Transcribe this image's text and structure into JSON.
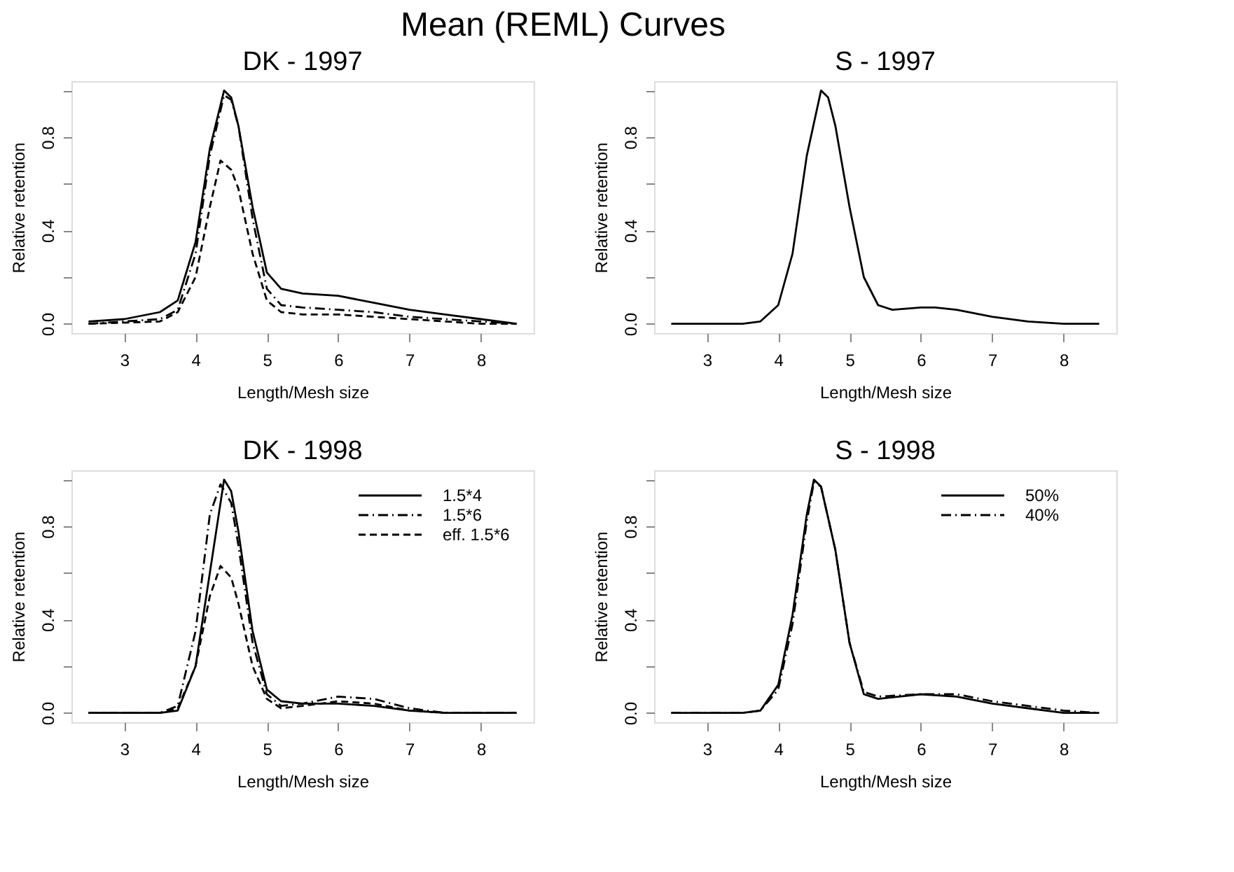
{
  "chart_data": [
    {
      "type": "line",
      "title": "DK - 1997",
      "xlabel": "Length/Mesh size",
      "ylabel": "Relative retention",
      "annotations": [
        "Mean (REML) Curves"
      ],
      "xlim": [
        2.26,
        8.74
      ],
      "ylim": [
        -0.04,
        1.04
      ],
      "xticks": [
        3,
        4,
        5,
        6,
        7,
        8
      ],
      "yticks": [
        {
          "value": 0,
          "label": "0.0"
        },
        {
          "value": 0.2,
          "label": null
        },
        {
          "value": 0.4,
          "label": "0.4"
        },
        {
          "value": 0.6,
          "label": null
        },
        {
          "value": 0.8,
          "label": "0.8"
        },
        {
          "value": 1.0,
          "label": null
        }
      ],
      "grid": false,
      "series": [
        {
          "color": "#000000",
          "line_style": "solid",
          "x": [
            2.5,
            3,
            3.5,
            3.75,
            4,
            4.2,
            4.4,
            4.5,
            4.6,
            4.8,
            5,
            5.2,
            5.5,
            6,
            6.5,
            7,
            7.5,
            8,
            8.5
          ],
          "values": [
            0.01,
            0.02,
            0.05,
            0.1,
            0.35,
            0.75,
            1.0,
            0.97,
            0.85,
            0.5,
            0.22,
            0.15,
            0.13,
            0.12,
            0.09,
            0.06,
            0.04,
            0.02,
            0.0
          ]
        },
        {
          "color": "#000000",
          "line_style": "dashdot",
          "x": [
            2.5,
            3.5,
            3.75,
            4,
            4.2,
            4.4,
            4.5,
            4.6,
            4.8,
            5,
            5.2,
            5.5,
            6,
            6.5,
            7,
            7.5,
            8,
            8.5
          ],
          "values": [
            0.0,
            0.02,
            0.06,
            0.3,
            0.72,
            0.98,
            0.96,
            0.85,
            0.45,
            0.15,
            0.08,
            0.07,
            0.06,
            0.05,
            0.03,
            0.02,
            0.01,
            0.0
          ]
        },
        {
          "color": "#000000",
          "line_style": "dashed",
          "x": [
            2.5,
            3.5,
            3.75,
            4,
            4.2,
            4.35,
            4.5,
            4.6,
            4.8,
            5,
            5.2,
            5.5,
            6,
            6.5,
            7,
            7.5,
            8,
            8.5
          ],
          "values": [
            0.0,
            0.01,
            0.05,
            0.2,
            0.5,
            0.7,
            0.66,
            0.58,
            0.3,
            0.1,
            0.05,
            0.04,
            0.04,
            0.03,
            0.02,
            0.01,
            0.0,
            0.0
          ]
        }
      ]
    },
    {
      "type": "line",
      "title": "S - 1997",
      "xlabel": "Length/Mesh size",
      "ylabel": "Relative retention",
      "xlim": [
        2.26,
        8.74
      ],
      "ylim": [
        -0.04,
        1.04
      ],
      "xticks": [
        3,
        4,
        5,
        6,
        7,
        8
      ],
      "yticks": [
        {
          "value": 0,
          "label": "0.0"
        },
        {
          "value": 0.2,
          "label": null
        },
        {
          "value": 0.4,
          "label": "0.4"
        },
        {
          "value": 0.6,
          "label": null
        },
        {
          "value": 0.8,
          "label": "0.8"
        },
        {
          "value": 1.0,
          "label": null
        }
      ],
      "grid": false,
      "series": [
        {
          "color": "#000000",
          "line_style": "solid",
          "x": [
            2.5,
            3.5,
            3.75,
            4,
            4.2,
            4.4,
            4.6,
            4.7,
            4.8,
            5,
            5.2,
            5.4,
            5.6,
            6,
            6.2,
            6.5,
            7,
            7.5,
            8,
            8.5
          ],
          "values": [
            0.0,
            0.0,
            0.01,
            0.08,
            0.3,
            0.72,
            1.0,
            0.97,
            0.85,
            0.5,
            0.2,
            0.08,
            0.06,
            0.07,
            0.07,
            0.06,
            0.03,
            0.01,
            0.0,
            0.0
          ]
        }
      ]
    },
    {
      "type": "line",
      "title": "DK - 1998",
      "xlabel": "Length/Mesh size",
      "ylabel": "Relative retention",
      "legend": "top right",
      "xlim": [
        2.26,
        8.74
      ],
      "ylim": [
        -0.04,
        1.04
      ],
      "xticks": [
        3,
        4,
        5,
        6,
        7,
        8
      ],
      "yticks": [
        {
          "value": 0,
          "label": "0.0"
        },
        {
          "value": 0.2,
          "label": null
        },
        {
          "value": 0.4,
          "label": "0.4"
        },
        {
          "value": 0.6,
          "label": null
        },
        {
          "value": 0.8,
          "label": "0.8"
        },
        {
          "value": 1.0,
          "label": null
        }
      ],
      "grid": false,
      "series": [
        {
          "name": "1.5*4",
          "color": "#000000",
          "line_style": "solid",
          "x": [
            2.5,
            3.5,
            3.75,
            4,
            4.2,
            4.4,
            4.5,
            4.6,
            4.8,
            5,
            5.2,
            5.5,
            6,
            6.5,
            7,
            7.5,
            8,
            8.5
          ],
          "values": [
            0.0,
            0.0,
            0.01,
            0.2,
            0.6,
            1.0,
            0.95,
            0.78,
            0.35,
            0.1,
            0.05,
            0.04,
            0.04,
            0.03,
            0.01,
            0.0,
            0.0,
            0.0
          ]
        },
        {
          "name": "1.5*6",
          "color": "#000000",
          "line_style": "dashdot",
          "x": [
            2.5,
            3.5,
            3.75,
            4,
            4.2,
            4.35,
            4.5,
            4.6,
            4.8,
            5,
            5.2,
            5.5,
            6,
            6.5,
            7,
            7.5,
            8,
            8.5
          ],
          "values": [
            0.0,
            0.0,
            0.03,
            0.35,
            0.85,
            0.98,
            0.9,
            0.72,
            0.3,
            0.08,
            0.03,
            0.04,
            0.07,
            0.06,
            0.02,
            0.0,
            0.0,
            0.0
          ]
        },
        {
          "name": "eff. 1.5*6",
          "color": "#000000",
          "line_style": "dashed",
          "x": [
            2.5,
            3.5,
            3.75,
            4,
            4.2,
            4.35,
            4.5,
            4.6,
            4.8,
            5,
            5.2,
            5.5,
            6,
            6.5,
            7,
            7.5,
            8,
            8.5
          ],
          "values": [
            0.0,
            0.0,
            0.02,
            0.2,
            0.5,
            0.63,
            0.58,
            0.47,
            0.2,
            0.06,
            0.02,
            0.03,
            0.05,
            0.04,
            0.01,
            0.0,
            0.0,
            0.0
          ]
        }
      ]
    },
    {
      "type": "line",
      "title": "S - 1998",
      "xlabel": "Length/Mesh size",
      "ylabel": "Relative retention",
      "legend": "top right",
      "xlim": [
        2.26,
        8.74
      ],
      "ylim": [
        -0.04,
        1.04
      ],
      "xticks": [
        3,
        4,
        5,
        6,
        7,
        8
      ],
      "yticks": [
        {
          "value": 0,
          "label": "0.0"
        },
        {
          "value": 0.2,
          "label": null
        },
        {
          "value": 0.4,
          "label": "0.4"
        },
        {
          "value": 0.6,
          "label": null
        },
        {
          "value": 0.8,
          "label": "0.8"
        },
        {
          "value": 1.0,
          "label": null
        }
      ],
      "grid": false,
      "series": [
        {
          "name": "50%",
          "color": "#000000",
          "line_style": "solid",
          "x": [
            2.5,
            3.5,
            3.75,
            4,
            4.2,
            4.4,
            4.5,
            4.6,
            4.8,
            5,
            5.2,
            5.4,
            6,
            6.5,
            7,
            7.5,
            8,
            8.5
          ],
          "values": [
            0.0,
            0.0,
            0.01,
            0.12,
            0.42,
            0.85,
            1.0,
            0.97,
            0.7,
            0.3,
            0.08,
            0.06,
            0.08,
            0.07,
            0.04,
            0.02,
            0.0,
            0.0
          ]
        },
        {
          "name": "40%",
          "color": "#000000",
          "line_style": "dashdot",
          "x": [
            2.5,
            3.5,
            3.75,
            4,
            4.2,
            4.4,
            4.5,
            4.6,
            4.8,
            5,
            5.2,
            5.4,
            6,
            6.5,
            7,
            7.5,
            8,
            8.5
          ],
          "values": [
            0.0,
            0.0,
            0.01,
            0.1,
            0.38,
            0.82,
            0.99,
            0.97,
            0.7,
            0.3,
            0.09,
            0.07,
            0.08,
            0.08,
            0.05,
            0.03,
            0.01,
            0.0
          ]
        }
      ]
    }
  ]
}
